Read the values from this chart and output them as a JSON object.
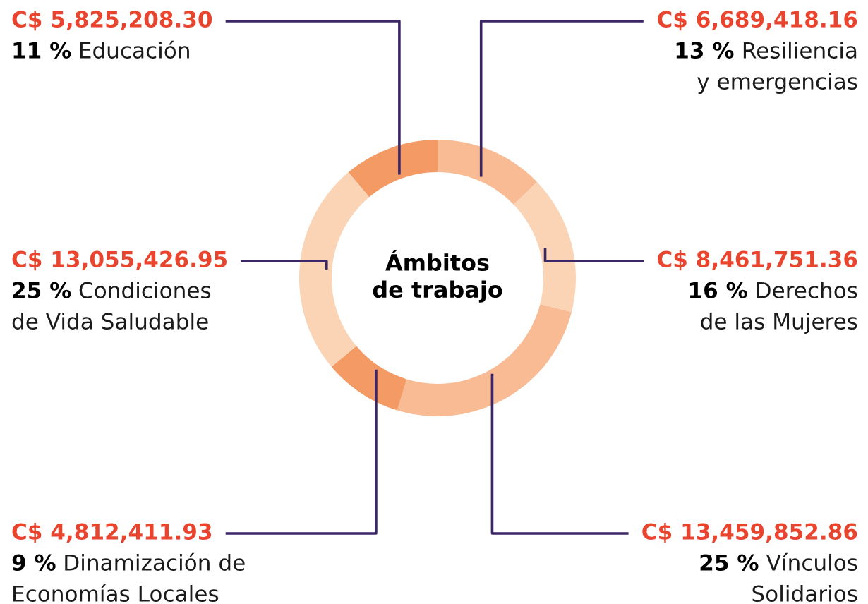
{
  "chart_data": {
    "type": "donut",
    "title": "Ámbitos\nde trabajo",
    "categories": [
      "Resiliencia\ny emergencias",
      "Derechos\nde las Mujeres",
      "Vínculos\nSolidarios",
      "Dinamización de\nEconomías Locales",
      "Condiciones\nde Vida Saludable",
      "Educación"
    ],
    "values": [
      6689418.16,
      8461751.36,
      13459852.86,
      4812411.93,
      13055426.95,
      5825208.3
    ],
    "colors": [
      "#f8bb93",
      "#fbd4b6",
      "#f8bb93",
      "#f39a65",
      "#fbd4b6",
      "#f39a65"
    ],
    "value_labels": [
      "C$ 6,689,418.16",
      "C$ 8,461,751.36",
      "C$ 13,459,852.86",
      "C$ 4,812,411.93",
      "C$ 13,055,426.95",
      "C$ 5,825,208.30"
    ],
    "annotations": [
      "13 %",
      "16 %",
      "25 %",
      "9 %",
      "25 %",
      "11 %"
    ]
  }
}
